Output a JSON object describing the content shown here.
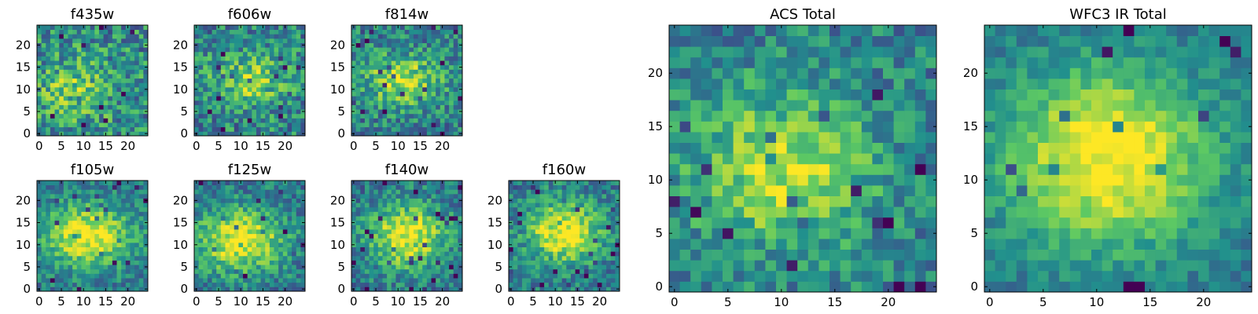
{
  "figure_title": "",
  "colormap": [
    "#440154",
    "#3b528b",
    "#21908d",
    "#5dc963",
    "#fde725"
  ],
  "chart_data": [
    {
      "type": "heatmap",
      "title": "f435w",
      "grid": 25,
      "ylim": [
        0,
        24
      ],
      "xticks": [
        0,
        5,
        10,
        15,
        20
      ],
      "yticks": [
        0,
        5,
        10,
        15,
        20
      ],
      "signal": 0.25,
      "noise": 0.28,
      "center": [
        8,
        10
      ],
      "sigma": [
        6,
        5
      ],
      "seed": 11
    },
    {
      "type": "heatmap",
      "title": "f606w",
      "grid": 25,
      "ylim": [
        0,
        24
      ],
      "xticks": [
        0,
        5,
        10,
        15,
        20
      ],
      "yticks": [
        0,
        5,
        10,
        15,
        20
      ],
      "signal": 0.35,
      "noise": 0.26,
      "center": [
        12,
        12
      ],
      "sigma": [
        6,
        4
      ],
      "seed": 23
    },
    {
      "type": "heatmap",
      "title": "f814w",
      "grid": 25,
      "ylim": [
        0,
        24
      ],
      "xticks": [
        0,
        5,
        10,
        15,
        20
      ],
      "yticks": [
        0,
        5,
        10,
        15,
        20
      ],
      "signal": 0.45,
      "noise": 0.24,
      "center": [
        11,
        12
      ],
      "sigma": [
        6,
        4
      ],
      "seed": 37
    },
    {
      "type": "heatmap",
      "title": "f105w",
      "grid": 25,
      "ylim": [
        0,
        24
      ],
      "xticks": [
        0,
        5,
        10,
        15,
        20
      ],
      "yticks": [
        0,
        5,
        10,
        15,
        20
      ],
      "signal": 0.6,
      "noise": 0.18,
      "center": [
        11,
        12
      ],
      "sigma": [
        7,
        5
      ],
      "seed": 41
    },
    {
      "type": "heatmap",
      "title": "f125w",
      "grid": 25,
      "ylim": [
        0,
        24
      ],
      "xticks": [
        0,
        5,
        10,
        15,
        20
      ],
      "yticks": [
        0,
        5,
        10,
        15,
        20
      ],
      "signal": 0.6,
      "noise": 0.2,
      "center": [
        10,
        11
      ],
      "sigma": [
        7,
        5
      ],
      "seed": 53
    },
    {
      "type": "heatmap",
      "title": "f140w",
      "grid": 25,
      "ylim": [
        0,
        24
      ],
      "xticks": [
        0,
        5,
        10,
        15,
        20
      ],
      "yticks": [
        0,
        5,
        10,
        15,
        20
      ],
      "signal": 0.6,
      "noise": 0.2,
      "center": [
        12,
        12
      ],
      "sigma": [
        6,
        5
      ],
      "seed": 67
    },
    {
      "type": "heatmap",
      "title": "f160w",
      "grid": 25,
      "ylim": [
        0,
        24
      ],
      "xticks": [
        0,
        5,
        10,
        15,
        20
      ],
      "yticks": [
        0,
        5,
        10,
        15,
        20
      ],
      "signal": 0.6,
      "noise": 0.2,
      "center": [
        12,
        13
      ],
      "sigma": [
        6,
        5
      ],
      "seed": 71
    },
    {
      "type": "heatmap",
      "title": "ACS Total",
      "grid": 25,
      "ylim": [
        0,
        24
      ],
      "xticks": [
        0,
        5,
        10,
        15,
        20
      ],
      "yticks": [
        0,
        5,
        10,
        15,
        20
      ],
      "signal": 0.45,
      "noise": 0.2,
      "center": [
        10,
        11
      ],
      "sigma": [
        6,
        5
      ],
      "seed": 83
    },
    {
      "type": "heatmap",
      "title": "WFC3 IR Total",
      "grid": 25,
      "ylim": [
        0,
        24
      ],
      "xticks": [
        0,
        5,
        10,
        15,
        20
      ],
      "yticks": [
        0,
        5,
        10,
        15,
        20
      ],
      "signal": 0.65,
      "noise": 0.12,
      "center": [
        11,
        12
      ],
      "sigma": [
        7,
        6
      ],
      "seed": 97
    }
  ]
}
